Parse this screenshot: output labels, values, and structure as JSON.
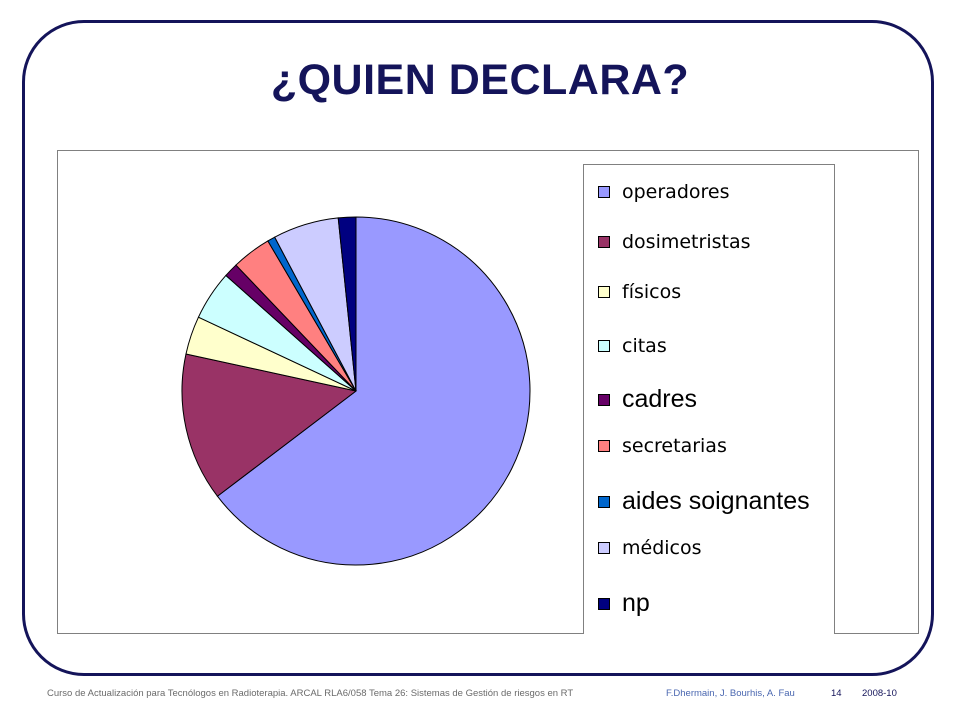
{
  "slide": {
    "title": "¿QUIEN DECLARA?"
  },
  "chart_data": {
    "type": "pie",
    "title": "",
    "legend_position": "right",
    "slices": [
      {
        "name": "operadores",
        "value": 63.5,
        "color": "#9999ff"
      },
      {
        "name": "dosimetristas",
        "value": 13.5,
        "color": "#993366"
      },
      {
        "name": "físicos",
        "value": 3.5,
        "color": "#ffffcc"
      },
      {
        "name": "citas",
        "value": 4.5,
        "color": "#ccffff"
      },
      {
        "name": "cadres",
        "value": 1.3,
        "color": "#660066"
      },
      {
        "name": "secretarias",
        "value": 3.6,
        "color": "#ff8080"
      },
      {
        "name": "aides soignantes",
        "value": 0.7,
        "color": "#0066cc"
      },
      {
        "name": "médicos",
        "value": 6.0,
        "color": "#ccccff"
      },
      {
        "name": "np",
        "value": 1.6,
        "color": "#000080"
      }
    ]
  },
  "footer": {
    "course": "Curso de Actualización para Tecnólogos en Radioterapia.  ARCAL RLA6/058 Tema 26: Sistemas de Gestión de riesgos en RT",
    "authors": "F.Dhermain, J. Bourhis, A. Fau",
    "page": "14",
    "year": "2008-10"
  }
}
